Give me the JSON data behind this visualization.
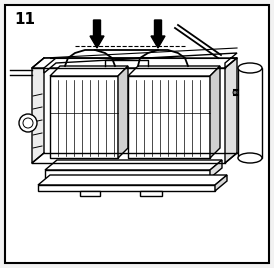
{
  "bg_color": "#f2f2f2",
  "border_color": "#000000",
  "line_color": "#000000",
  "step_number": "11",
  "figsize": [
    2.74,
    2.68
  ],
  "dpi": 100,
  "white": "#ffffff"
}
